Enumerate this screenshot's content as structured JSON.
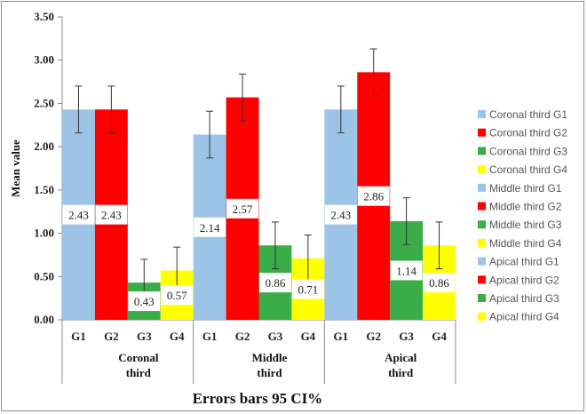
{
  "chart_data": {
    "type": "bar",
    "ylabel": "Mean value",
    "xlabel": "Errors bars 95 CI%",
    "ylim": [
      0,
      3.5
    ],
    "yticks": [
      "0.00",
      "0.50",
      "1.00",
      "1.50",
      "2.00",
      "2.50",
      "3.00",
      "3.50"
    ],
    "categories": [
      "G1",
      "G2",
      "G3",
      "G4"
    ],
    "groups": [
      {
        "label": "Coronal third",
        "values": [
          2.43,
          2.43,
          0.43,
          0.57
        ],
        "labels": [
          "2.43",
          "2.43",
          "0.43",
          "0.57"
        ],
        "error": [
          0.27,
          0.27,
          0.27,
          0.27
        ]
      },
      {
        "label": "Middle third",
        "values": [
          2.14,
          2.57,
          0.86,
          0.71
        ],
        "labels": [
          "2.14",
          "2.57",
          "0.86",
          "0.71"
        ],
        "error": [
          0.27,
          0.27,
          0.27,
          0.27
        ]
      },
      {
        "label": "Apical third",
        "values": [
          2.43,
          2.86,
          1.14,
          0.86
        ],
        "labels": [
          "2.43",
          "2.86",
          "1.14",
          "0.86"
        ],
        "error": [
          0.27,
          0.27,
          0.27,
          0.27
        ]
      }
    ],
    "series_colors": [
      "#9dc3e6",
      "#ff0000",
      "#3aad49",
      "#ffff00"
    ],
    "legend": [
      "Coronal third G1",
      "Coronal third G2",
      "Coronal third G3",
      "Coronal third G4",
      "Middle third G1",
      "Middle third G2",
      "Middle third G3",
      "Middle third G4",
      "Apical third G1",
      "Apical third G2",
      "Apical third G3",
      "Apical third G4"
    ],
    "legend_position": "right",
    "grid": false
  }
}
